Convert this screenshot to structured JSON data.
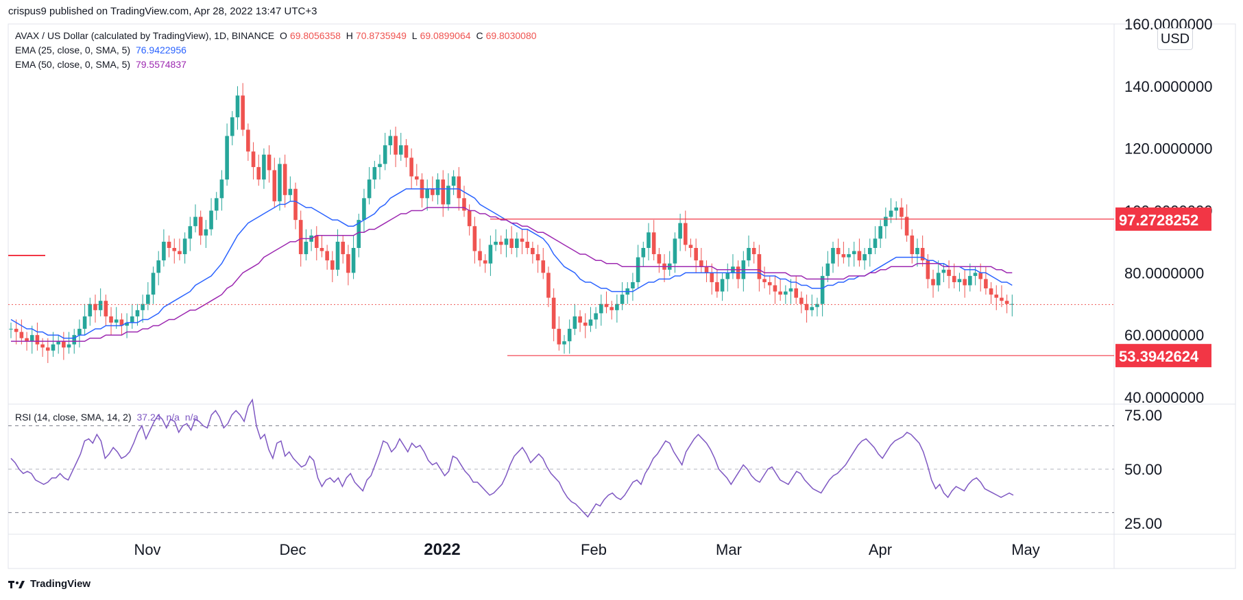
{
  "header": {
    "published": "crispus9 published on TradingView.com, Apr 28, 2022 13:47 UTC+3"
  },
  "legend": {
    "symbol": "AVAX / US Dollar (calculated by TradingView), 1D, BINANCE",
    "open_label": "O",
    "open": "69.8056358",
    "high_label": "H",
    "high": "70.8735949",
    "low_label": "L",
    "low": "69.0899064",
    "close_label": "C",
    "close": "69.8030080",
    "ema25_label": "EMA (25, close, 0, SMA, 5)",
    "ema25_value": "76.9422956",
    "ema50_label": "EMA (50, close, 0, SMA, 5)",
    "ema50_value": "79.5574837",
    "rsi_label": "RSI (14, close, SMA, 14, 2)",
    "rsi_value": "37.24",
    "rsi_na1": "n/a",
    "rsi_na2": "n/a"
  },
  "currency_badge": "USD",
  "footer": {
    "brand": "TradingView"
  },
  "colors": {
    "up": "#26a69a",
    "down": "#ef5350",
    "ema25": "#2962ff",
    "ema50": "#9c27b0",
    "rsi": "#7e57c2",
    "level": "#f23645"
  },
  "chart_data": [
    {
      "type": "candlestick",
      "x_labels": [
        "Nov",
        "Dec",
        "2022",
        "Feb",
        "Mar",
        "Apr",
        "May"
      ],
      "y_ticks": [
        "160.0000000",
        "140.0000000",
        "120.0000000",
        "100.0000000",
        "80.0000000",
        "60.0000000",
        "40.0000000"
      ],
      "ylim": [
        40,
        160
      ],
      "levels": [
        {
          "value": 97.2728252,
          "label": "97.2728252"
        },
        {
          "value": 53.3942624,
          "label": "53.3942624"
        }
      ],
      "last_close": 69.803008,
      "close_series": [
        62,
        61,
        59,
        58,
        60,
        57,
        56,
        55,
        57,
        58,
        56,
        57,
        60,
        62,
        66,
        70,
        68,
        71,
        66,
        64,
        65,
        63,
        64,
        66,
        68,
        70,
        73,
        80,
        84,
        90,
        88,
        87,
        86,
        91,
        95,
        98,
        92,
        94,
        100,
        104,
        110,
        124,
        130,
        137,
        126,
        119,
        114,
        110,
        118,
        113,
        103,
        115,
        105,
        107,
        97,
        86,
        90,
        92,
        88,
        87,
        84,
        81,
        90,
        86,
        80,
        88,
        97,
        104,
        110,
        114,
        115,
        121,
        124,
        118,
        121,
        117,
        111,
        110,
        104,
        107,
        105,
        110,
        102,
        108,
        111,
        104,
        100,
        95,
        87,
        84,
        83,
        89,
        90,
        89,
        91,
        88,
        91,
        90,
        88,
        86,
        84,
        80,
        72,
        62,
        57,
        58,
        62,
        66,
        64,
        63,
        65,
        67,
        70,
        69,
        68,
        70,
        73,
        75,
        77,
        85,
        88,
        93,
        86,
        83,
        81,
        83,
        91,
        96,
        89,
        88,
        84,
        82,
        80,
        77,
        74,
        78,
        80,
        82,
        78,
        84,
        88,
        86,
        78,
        77,
        76,
        74,
        73,
        74,
        75,
        72,
        70,
        68,
        69,
        70,
        79,
        83,
        88,
        86,
        85,
        86,
        87,
        84,
        86,
        88,
        91,
        95,
        98,
        100,
        101,
        98,
        92,
        86,
        88,
        84,
        78,
        76,
        80,
        81,
        79,
        77,
        78,
        76,
        79,
        80,
        78,
        75,
        73,
        72,
        71,
        70,
        70
      ],
      "ema25": [
        65,
        64,
        63,
        62,
        62,
        61,
        61,
        60,
        60,
        60,
        59,
        59,
        59,
        60,
        60,
        61,
        62,
        62,
        63,
        63,
        63,
        63,
        64,
        64,
        64,
        65,
        65,
        66,
        67,
        69,
        70,
        71,
        72,
        73,
        74,
        76,
        77,
        78,
        79,
        81,
        83,
        86,
        89,
        92,
        94,
        96,
        97,
        98,
        99,
        100,
        101,
        102,
        102,
        103,
        103,
        102,
        101,
        101,
        100,
        99,
        98,
        97,
        97,
        96,
        95,
        95,
        96,
        97,
        98,
        99,
        101,
        102,
        104,
        105,
        106,
        107,
        107,
        107,
        107,
        107,
        107,
        107,
        107,
        107,
        107,
        107,
        106,
        105,
        104,
        102,
        101,
        100,
        99,
        98,
        97,
        96,
        95,
        94,
        94,
        93,
        92,
        91,
        89,
        86,
        84,
        82,
        81,
        80,
        78,
        77,
        77,
        76,
        75,
        75,
        74,
        74,
        74,
        74,
        74,
        75,
        76,
        77,
        77,
        78,
        78,
        78,
        79,
        79,
        80,
        80,
        80,
        80,
        80,
        80,
        80,
        80,
        80,
        80,
        80,
        80,
        80,
        80,
        80,
        79,
        79,
        79,
        78,
        78,
        77,
        77,
        76,
        76,
        75,
        75,
        75,
        76,
        76,
        77,
        77,
        78,
        78,
        79,
        79,
        80,
        81,
        82,
        83,
        84,
        85,
        85,
        85,
        85,
        85,
        85,
        84,
        84,
        83,
        83,
        82,
        82,
        82,
        81,
        81,
        81,
        80,
        80,
        79,
        78,
        77,
        77,
        76
      ],
      "ema50": [
        58,
        58,
        58,
        58,
        58,
        58,
        58,
        58,
        58,
        58,
        58,
        58,
        58,
        58,
        58,
        59,
        59,
        59,
        60,
        60,
        60,
        60,
        61,
        61,
        61,
        62,
        62,
        63,
        63,
        64,
        65,
        65,
        66,
        67,
        68,
        68,
        69,
        70,
        71,
        72,
        73,
        75,
        76,
        78,
        80,
        81,
        82,
        83,
        85,
        86,
        87,
        88,
        89,
        90,
        90,
        91,
        91,
        91,
        92,
        92,
        92,
        92,
        92,
        92,
        92,
        92,
        93,
        93,
        94,
        94,
        95,
        96,
        97,
        98,
        99,
        99,
        100,
        100,
        100,
        101,
        101,
        101,
        101,
        101,
        101,
        101,
        101,
        100,
        100,
        99,
        99,
        98,
        98,
        97,
        97,
        96,
        96,
        95,
        95,
        94,
        93,
        93,
        92,
        91,
        90,
        89,
        88,
        87,
        86,
        86,
        85,
        84,
        84,
        83,
        83,
        83,
        82,
        82,
        82,
        82,
        82,
        82,
        82,
        82,
        82,
        82,
        82,
        82,
        82,
        82,
        82,
        82,
        82,
        82,
        81,
        81,
        81,
        81,
        81,
        81,
        81,
        81,
        81,
        80,
        80,
        80,
        80,
        80,
        79,
        79,
        79,
        78,
        78,
        78,
        78,
        78,
        78,
        78,
        78,
        79,
        79,
        79,
        79,
        80,
        80,
        81,
        81,
        82,
        82,
        82,
        82,
        82,
        83,
        83,
        83,
        83,
        83,
        82,
        82,
        82,
        82,
        82,
        82,
        82,
        82,
        82,
        82,
        81,
        81,
        80,
        80
      ]
    },
    {
      "type": "line",
      "title": "RSI (14, close, SMA, 14, 2)",
      "y_ticks": [
        "75.00",
        "50.00",
        "25.00"
      ],
      "ylim": [
        20,
        80
      ],
      "bands": [
        70,
        50,
        30
      ],
      "rsi": [
        55,
        53,
        50,
        48,
        49,
        48,
        45,
        44,
        43,
        44,
        46,
        46,
        48,
        46,
        45,
        49,
        53,
        57,
        63,
        64,
        62,
        66,
        63,
        55,
        57,
        60,
        58,
        55,
        56,
        58,
        62,
        67,
        70,
        64,
        68,
        72,
        75,
        73,
        69,
        73,
        72,
        67,
        70,
        71,
        68,
        73,
        72,
        70,
        69,
        75,
        77,
        74,
        69,
        71,
        75,
        77,
        75,
        72,
        79,
        82,
        70,
        64,
        66,
        59,
        55,
        62,
        63,
        56,
        58,
        55,
        53,
        51,
        52,
        56,
        54,
        46,
        42,
        45,
        46,
        44,
        46,
        42,
        46,
        48,
        44,
        42,
        40,
        45,
        47,
        52,
        57,
        63,
        62,
        58,
        60,
        64,
        61,
        58,
        62,
        60,
        61,
        58,
        54,
        52,
        53,
        50,
        47,
        49,
        56,
        55,
        52,
        49,
        47,
        44,
        44,
        42,
        40,
        38,
        39,
        41,
        43,
        47,
        52,
        56,
        58,
        60,
        57,
        53,
        55,
        57,
        55,
        51,
        48,
        46,
        44,
        40,
        37,
        35,
        34,
        32,
        30,
        28,
        31,
        34,
        33,
        36,
        38,
        39,
        37,
        36,
        38,
        41,
        44,
        45,
        43,
        48,
        51,
        55,
        57,
        60,
        63,
        62,
        58,
        55,
        52,
        58,
        61,
        64,
        66,
        64,
        62,
        59,
        55
      ],
      "rsi_tail": [
        50,
        48,
        46,
        43,
        46,
        49,
        52,
        50,
        47,
        45,
        44,
        47,
        50,
        51,
        48,
        45,
        44,
        43,
        46,
        49,
        48,
        45,
        43,
        41,
        40,
        39,
        42,
        45,
        47,
        48,
        50,
        52,
        55,
        58,
        61,
        63,
        64,
        62,
        60,
        57,
        55,
        58,
        61,
        63,
        64,
        65,
        67,
        66,
        64,
        62,
        58,
        52,
        45,
        41,
        43,
        39,
        37,
        40,
        42,
        41,
        40,
        43,
        45,
        46,
        44,
        41,
        40,
        39,
        38,
        37,
        38,
        39,
        38
      ]
    }
  ]
}
